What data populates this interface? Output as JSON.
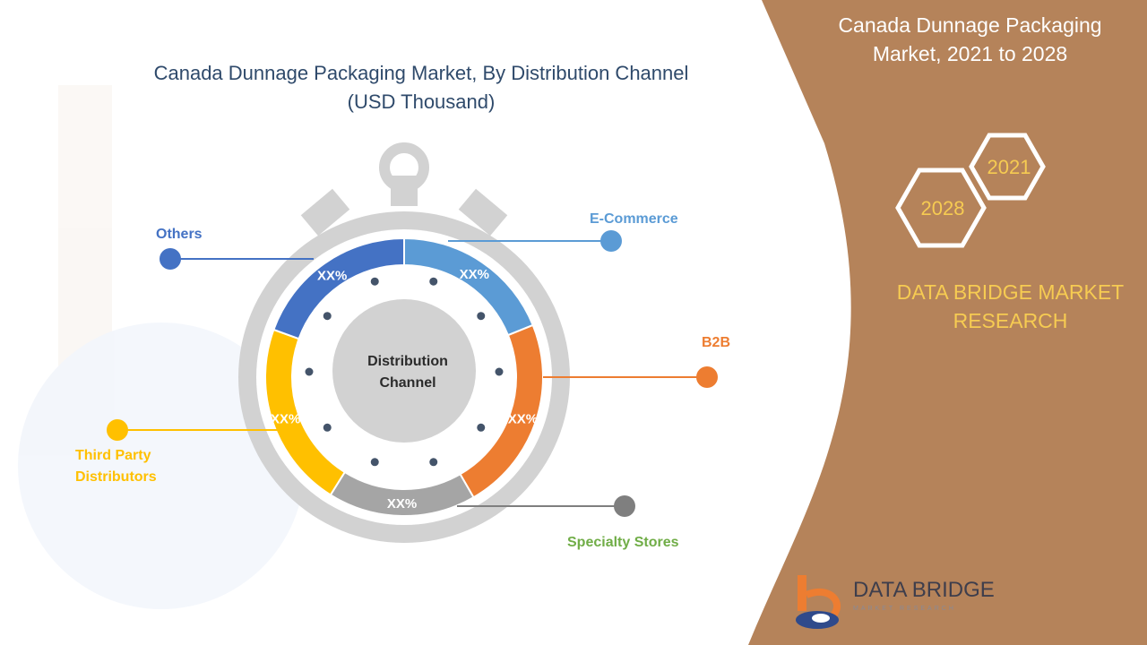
{
  "title_line1": "Canada Dunnage Packaging Market, By Distribution Channel",
  "title_line2": "(USD Thousand)",
  "side_title_line1": "Canada Dunnage Packaging",
  "side_title_line2": "Market, 2021 to 2028",
  "years": {
    "start": "2021",
    "end": "2028"
  },
  "brand_line1": "DATA BRIDGE MARKET",
  "brand_line2": "RESEARCH",
  "logo": {
    "name": "DATA BRIDGE",
    "tagline": "MARKET RESEARCH"
  },
  "colors": {
    "panel": "#b5835a",
    "accent_yellow": "#f6cb52",
    "title": "#2f4a6b"
  },
  "chart_data": {
    "type": "pie",
    "title": "Canada Dunnage Packaging Market, By Distribution Channel (USD Thousand)",
    "center_label_line1": "Distribution",
    "center_label_line2": "Channel",
    "segments": [
      {
        "name": "E-Commerce",
        "value_label": "XX%",
        "color": "#5b9bd5"
      },
      {
        "name": "B2B",
        "value_label": "XX%",
        "color": "#ed7d31"
      },
      {
        "name": "Specialty Stores",
        "value_label": "XX%",
        "color": "#a5a5a5",
        "label_color": "#70ad47"
      },
      {
        "name": "Third  Party\nDistributors",
        "value_label": "XX%",
        "color": "#ffc000"
      },
      {
        "name": "Others",
        "value_label": "XX%",
        "color": "#4472c4"
      }
    ]
  }
}
